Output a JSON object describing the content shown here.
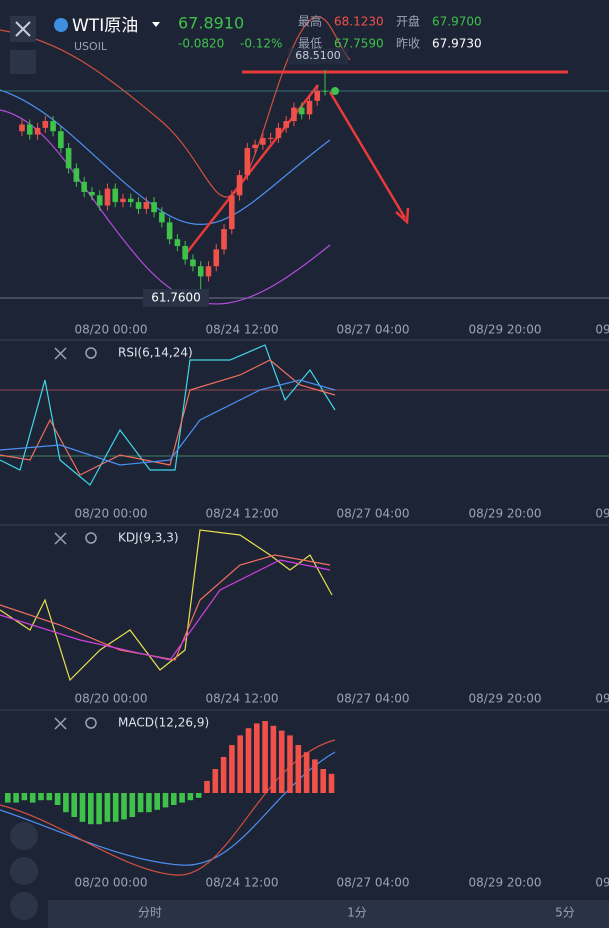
{
  "header": {
    "symbol": "WTI原油",
    "code": "USOIL",
    "price": "67.8910",
    "change": "-0.0820",
    "change_pct": "-0.12%",
    "stats": [
      {
        "label": "最高",
        "value": "68.1230"
      },
      {
        "label": "开盘",
        "value": "67.9700"
      },
      {
        "label": "最低",
        "value": "67.7590"
      },
      {
        "label": "昨收",
        "value": "67.9730"
      }
    ]
  },
  "price_chart": {
    "ylim": [
      60.515,
      70.587
    ],
    "high_label": {
      "value": 68.51,
      "label": "68.5100"
    },
    "low_label": {
      "value": 61.76,
      "label": "61.7600"
    },
    "current": 67.891,
    "up_color": "#f0524a",
    "down_color": "#3ec24a",
    "candles": [
      [
        66.7,
        67.05,
        66.55,
        66.9
      ],
      [
        66.9,
        67.05,
        66.45,
        66.6
      ],
      [
        66.6,
        66.95,
        66.45,
        66.8
      ],
      [
        66.8,
        67.15,
        66.65,
        67.0
      ],
      [
        67.0,
        67.15,
        66.55,
        66.7
      ],
      [
        66.7,
        66.85,
        66.05,
        66.2
      ],
      [
        66.2,
        66.35,
        65.45,
        65.6
      ],
      [
        65.6,
        65.75,
        65.05,
        65.2
      ],
      [
        65.2,
        65.35,
        64.75,
        64.9
      ],
      [
        64.9,
        65.05,
        64.65,
        64.8
      ],
      [
        64.8,
        64.95,
        64.35,
        64.5
      ],
      [
        64.5,
        65.15,
        64.35,
        65.0
      ],
      [
        65.0,
        65.15,
        64.45,
        64.6
      ],
      [
        64.6,
        64.85,
        64.45,
        64.7
      ],
      [
        64.7,
        64.85,
        64.45,
        64.6
      ],
      [
        64.6,
        64.75,
        64.25,
        64.4
      ],
      [
        64.4,
        64.75,
        64.25,
        64.6
      ],
      [
        64.6,
        64.75,
        64.15,
        64.3
      ],
      [
        64.3,
        64.45,
        63.85,
        64.0
      ],
      [
        64.0,
        64.15,
        63.35,
        63.5
      ],
      [
        63.5,
        63.65,
        63.15,
        63.3
      ],
      [
        63.3,
        63.45,
        62.75,
        62.9
      ],
      [
        62.9,
        63.05,
        62.55,
        62.7
      ],
      [
        62.7,
        62.85,
        61.76,
        62.4
      ],
      [
        62.4,
        62.85,
        62.25,
        62.7
      ],
      [
        62.7,
        63.35,
        62.55,
        63.2
      ],
      [
        63.2,
        63.95,
        63.05,
        63.8
      ],
      [
        63.8,
        64.95,
        63.65,
        64.8
      ],
      [
        64.8,
        65.55,
        64.65,
        65.4
      ],
      [
        65.4,
        66.35,
        65.25,
        66.2
      ],
      [
        66.2,
        66.45,
        66.05,
        66.3
      ],
      [
        66.3,
        66.65,
        66.15,
        66.5
      ],
      [
        66.5,
        66.65,
        66.35,
        66.5
      ],
      [
        66.5,
        66.95,
        66.35,
        66.8
      ],
      [
        66.8,
        67.15,
        66.65,
        67.0
      ],
      [
        67.0,
        67.55,
        66.85,
        67.4
      ],
      [
        67.4,
        67.55,
        67.05,
        67.2
      ],
      [
        67.2,
        67.75,
        67.05,
        67.6
      ],
      [
        67.6,
        68.05,
        67.45,
        67.9
      ],
      [
        67.9,
        68.51,
        67.76,
        67.891
      ]
    ]
  },
  "x_labels": [
    "08/20 00:00",
    "08/24 12:00",
    "08/27 04:00",
    "08/29 20:00",
    "09"
  ],
  "indicators": [
    "RSI(6,14,24)",
    "KDJ(9,3,3)",
    "MACD(12,26,9)"
  ],
  "macd": {
    "ylim": [
      -0.425,
      0.3375
    ],
    "histogram": [
      -0.04,
      -0.04,
      -0.03,
      -0.04,
      -0.03,
      -0.03,
      -0.05,
      -0.08,
      -0.1,
      -0.12,
      -0.13,
      -0.13,
      -0.12,
      -0.12,
      -0.11,
      -0.1,
      -0.08,
      -0.08,
      -0.07,
      -0.06,
      -0.05,
      -0.04,
      -0.03,
      -0.02,
      0.05,
      0.1,
      0.15,
      0.2,
      0.24,
      0.27,
      0.29,
      0.3,
      0.28,
      0.26,
      0.24,
      0.2,
      0.17,
      0.14,
      0.1,
      0.08
    ]
  },
  "tabs": [
    "分时",
    "1分",
    "5分"
  ]
}
